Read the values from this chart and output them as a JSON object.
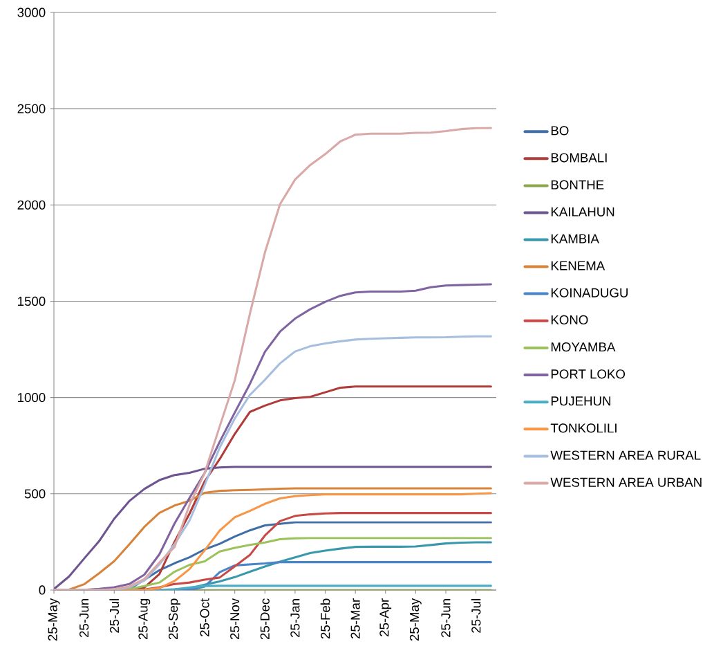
{
  "chart_data": {
    "type": "line",
    "categories": [
      "25-May",
      null,
      "25-Jun",
      null,
      "25-Jul",
      null,
      "25-Aug",
      null,
      "25-Sep",
      null,
      "25-Oct",
      null,
      "25-Nov",
      null,
      "25-Dec",
      null,
      "25-Jan",
      null,
      "25-Feb",
      null,
      "25-Mar",
      null,
      "25-Apr",
      null,
      "25-May",
      null,
      "25-Jun",
      null,
      "25-Jul",
      null
    ],
    "ylim": [
      0,
      3000
    ],
    "yticks": [
      0,
      500,
      1000,
      1500,
      2000,
      2500,
      3000
    ],
    "grid": "y",
    "legend": "right",
    "series": [
      {
        "name": "BO",
        "color": "#3f6ea6",
        "values": [
          0,
          0,
          0,
          0,
          0,
          5,
          53,
          103,
          139,
          170,
          211,
          240,
          278,
          310,
          336,
          344,
          352,
          352,
          352,
          352,
          352,
          352,
          352,
          352,
          352,
          352,
          352,
          352,
          352,
          352
        ]
      },
      {
        "name": "BOMBALI",
        "color": "#b03c3a",
        "values": [
          0,
          0,
          0,
          0,
          0,
          2,
          13,
          83,
          250,
          397,
          564,
          680,
          811,
          925,
          958,
          985,
          997,
          1003,
          1027,
          1051,
          1057,
          1057,
          1057,
          1057,
          1057,
          1057,
          1057,
          1057,
          1057,
          1057
        ]
      },
      {
        "name": "BONTHE",
        "color": "#8aa84b",
        "values": [
          0,
          0,
          0,
          0,
          0,
          0,
          0,
          0,
          0,
          0,
          0,
          0,
          0,
          0,
          0,
          0,
          0,
          0,
          0,
          0,
          0,
          0,
          0,
          0,
          0,
          0,
          0,
          0,
          0,
          0
        ]
      },
      {
        "name": "KAILAHUN",
        "color": "#6e5590",
        "values": [
          5,
          70,
          163,
          254,
          370,
          462,
          525,
          571,
          597,
          609,
          630,
          637,
          640,
          640,
          640,
          640,
          640,
          640,
          640,
          640,
          640,
          640,
          640,
          640,
          640,
          640,
          640,
          640,
          640,
          640
        ]
      },
      {
        "name": "KAMBIA",
        "color": "#3a98ad",
        "values": [
          null,
          null,
          null,
          0,
          0,
          0,
          0,
          0,
          2,
          9,
          28,
          45,
          67,
          95,
          122,
          147,
          170,
          192,
          205,
          215,
          224,
          225,
          225,
          225,
          226,
          234,
          242,
          246,
          248,
          248
        ]
      },
      {
        "name": "KENEMA",
        "color": "#d7843a",
        "values": [
          0,
          2,
          30,
          87,
          150,
          237,
          328,
          401,
          439,
          464,
          505,
          515,
          518,
          520,
          523,
          526,
          528,
          528,
          528,
          528,
          528,
          528,
          528,
          528,
          528,
          528,
          528,
          528,
          528,
          528
        ]
      },
      {
        "name": "KOINADUGU",
        "color": "#4a85c8",
        "values": [
          0,
          0,
          0,
          0,
          0,
          0,
          0,
          0,
          0,
          0,
          18,
          93,
          128,
          133,
          138,
          145,
          145,
          145,
          145,
          145,
          145,
          145,
          145,
          145,
          145,
          145,
          145,
          145,
          145,
          145
        ]
      },
      {
        "name": "KONO",
        "color": "#c84a48",
        "values": [
          0,
          0,
          0,
          0,
          0,
          0,
          3,
          14,
          31,
          39,
          54,
          65,
          123,
          182,
          283,
          358,
          385,
          393,
          398,
          400,
          400,
          400,
          400,
          400,
          400,
          400,
          400,
          400,
          400,
          400
        ]
      },
      {
        "name": "MOYAMBA",
        "color": "#9bc25b",
        "values": [
          null,
          null,
          null,
          null,
          0,
          5,
          21,
          39,
          95,
          131,
          149,
          200,
          219,
          234,
          247,
          264,
          269,
          270,
          270,
          270,
          270,
          270,
          270,
          270,
          270,
          270,
          270,
          270,
          270,
          270
        ]
      },
      {
        "name": "PORT LOKO",
        "color": "#8064a2",
        "values": [
          0,
          0,
          1,
          6,
          14,
          31,
          80,
          186,
          345,
          479,
          608,
          770,
          922,
          1070,
          1237,
          1342,
          1410,
          1458,
          1497,
          1528,
          1546,
          1550,
          1550,
          1550,
          1555,
          1573,
          1582,
          1584,
          1586,
          1588
        ]
      },
      {
        "name": "PUJEHUN",
        "color": "#4bacc6",
        "values": [
          null,
          null,
          null,
          0,
          0,
          0,
          0,
          0,
          4,
          13,
          21,
          22,
          22,
          22,
          22,
          22,
          22,
          22,
          22,
          22,
          22,
          22,
          22,
          22,
          22,
          22,
          22,
          22,
          22,
          22
        ]
      },
      {
        "name": "TONKOLILI",
        "color": "#f79646",
        "values": [
          0,
          0,
          0,
          0,
          0,
          0,
          1,
          10,
          47,
          109,
          206,
          309,
          378,
          411,
          448,
          476,
          488,
          493,
          497,
          497,
          497,
          497,
          497,
          497,
          497,
          497,
          497,
          497,
          500,
          503
        ]
      },
      {
        "name": "WESTERN AREA RURAL",
        "color": "#a7bedf",
        "values": [
          0,
          0,
          0,
          0,
          2,
          14,
          49,
          133,
          238,
          361,
          545,
          740,
          891,
          1013,
          1092,
          1177,
          1239,
          1266,
          1281,
          1292,
          1301,
          1305,
          1308,
          1310,
          1312,
          1312,
          1313,
          1316,
          1318,
          1318
        ]
      },
      {
        "name": "WESTERN AREA URBAN",
        "color": "#d9a9a7",
        "values": [
          0,
          0,
          0,
          0,
          4,
          19,
          57,
          143,
          223,
          443,
          607,
          850,
          1089,
          1434,
          1753,
          2004,
          2132,
          2207,
          2264,
          2330,
          2365,
          2370,
          2370,
          2370,
          2375,
          2376,
          2384,
          2394,
          2399,
          2400
        ]
      }
    ]
  }
}
